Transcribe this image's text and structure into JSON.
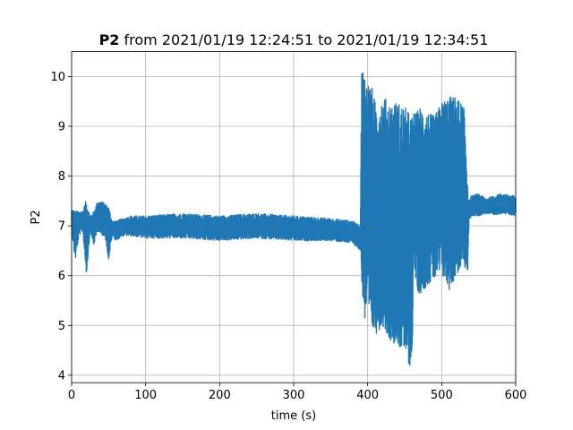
{
  "chart_data": {
    "type": "line",
    "title_bold": "P2",
    "title_rest": " from 2021/01/19 12:24:51 to 2021/01/19 12:34:51",
    "xlabel": "time (s)",
    "ylabel": "P2",
    "xlim": [
      0,
      600
    ],
    "ylim": [
      3.85,
      10.5
    ],
    "xticks": [
      0,
      100,
      200,
      300,
      400,
      500,
      600
    ],
    "xtick_labels": [
      "0",
      "100",
      "200",
      "300",
      "400",
      "500",
      "600"
    ],
    "yticks": [
      4,
      5,
      6,
      7,
      8,
      9,
      10
    ],
    "ytick_labels": [
      "4",
      "5",
      "6",
      "7",
      "8",
      "9",
      "10"
    ],
    "grid": true,
    "series_color": "#1f77b4",
    "envelope": {
      "t": [
        0,
        5,
        10,
        15,
        20,
        25,
        30,
        35,
        40,
        45,
        50,
        55,
        60,
        70,
        80,
        100,
        150,
        200,
        250,
        300,
        350,
        380,
        390,
        392,
        395,
        400,
        405,
        410,
        420,
        430,
        440,
        450,
        455,
        460,
        462,
        465,
        470,
        480,
        490,
        500,
        510,
        520,
        530,
        535,
        537,
        540,
        550,
        560,
        570,
        580,
        600
      ],
      "min": [
        6.9,
        6.3,
        6.8,
        6.9,
        6.0,
        6.9,
        6.6,
        6.9,
        6.8,
        6.8,
        6.3,
        6.8,
        6.7,
        6.8,
        6.8,
        6.75,
        6.75,
        6.7,
        6.75,
        6.7,
        6.7,
        6.65,
        6.5,
        5.9,
        5.0,
        5.1,
        4.9,
        4.8,
        5.0,
        4.7,
        4.6,
        4.4,
        4.2,
        4.15,
        6.3,
        5.8,
        5.6,
        5.8,
        5.9,
        6.0,
        5.7,
        6.0,
        6.2,
        6.0,
        7.1,
        7.2,
        7.2,
        7.25,
        7.2,
        7.25,
        7.2
      ],
      "max": [
        7.35,
        7.3,
        7.3,
        7.3,
        7.55,
        7.2,
        7.3,
        7.5,
        7.5,
        7.45,
        7.4,
        7.1,
        7.1,
        7.15,
        7.2,
        7.2,
        7.25,
        7.2,
        7.25,
        7.2,
        7.15,
        7.1,
        7.0,
        10.2,
        10.15,
        9.9,
        9.85,
        9.5,
        9.6,
        9.5,
        9.5,
        9.4,
        9.3,
        9.2,
        9.3,
        9.25,
        9.4,
        9.3,
        9.2,
        9.5,
        9.6,
        9.6,
        9.4,
        8.0,
        7.5,
        7.6,
        7.65,
        7.55,
        7.6,
        7.65,
        7.6
      ],
      "density": [
        2,
        2,
        2,
        2,
        2,
        2,
        2,
        2,
        2,
        2,
        2,
        2,
        2,
        2,
        2,
        2,
        2,
        2,
        2,
        2,
        2,
        2,
        2,
        1,
        1,
        1,
        1,
        1,
        1,
        1,
        1,
        1,
        1,
        1,
        1,
        1,
        1,
        1,
        1,
        1,
        1,
        1,
        1,
        1,
        2,
        2,
        2,
        2,
        2,
        2,
        2
      ]
    }
  }
}
